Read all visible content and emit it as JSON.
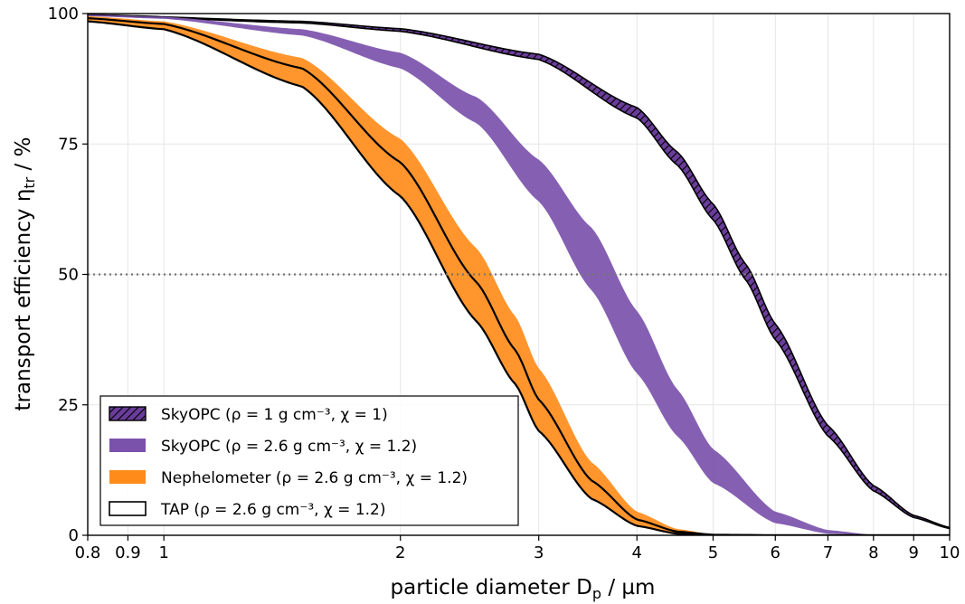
{
  "chart_data": {
    "type": "area",
    "title": "",
    "xlabel": "particle diameter D",
    "xlabel_sub": "p",
    "xlabel_unit": " / µm",
    "ylabel": "transport efficiency η",
    "ylabel_sub": "tr",
    "ylabel_unit": " / %",
    "xscale": "log",
    "xlim": [
      0.8,
      10
    ],
    "ylim": [
      0,
      100
    ],
    "xticks": [
      0.8,
      0.9,
      1,
      2,
      3,
      4,
      5,
      6,
      7,
      8,
      9,
      10
    ],
    "xtick_labels": [
      "0.8",
      "0.9",
      "1",
      "2",
      "3",
      "4",
      "5",
      "6",
      "7",
      "8",
      "9",
      "10"
    ],
    "yticks": [
      0,
      25,
      50,
      75,
      100
    ],
    "ytick_labels": [
      "0",
      "25",
      "50",
      "75",
      "100"
    ],
    "grid": true,
    "reference_line": {
      "y": 50,
      "style": "dotted"
    },
    "legend_position": "lower-left",
    "series": [
      {
        "name": "SkyOPC (ρ = 1 g cm⁻³, χ = 1)",
        "fill": "hatched",
        "color": "#6a3d9a",
        "x": [
          0.8,
          1.5,
          2,
          3,
          4,
          4.5,
          5,
          5.5,
          6,
          7,
          8,
          9,
          10
        ],
        "upper": [
          99.8,
          98.5,
          97.1,
          92.2,
          82.0,
          73.5,
          63.5,
          52.0,
          40.5,
          21.0,
          9.5,
          3.8,
          1.5
        ],
        "lower": [
          99.7,
          98.2,
          96.6,
          91.2,
          80.0,
          71.0,
          60.5,
          49.0,
          37.5,
          19.0,
          8.5,
          3.4,
          1.3
        ]
      },
      {
        "name": "SkyOPC (ρ = 2.6 g cm⁻³, χ = 1.2)",
        "fill": "solid",
        "color": "#7b52ab",
        "x": [
          0.8,
          1,
          1.5,
          2,
          2.5,
          3,
          3.5,
          4,
          4.5,
          5,
          6,
          7,
          8
        ],
        "upper": [
          99.8,
          99.4,
          97.0,
          92.5,
          84.0,
          72.0,
          59.0,
          43.0,
          28.0,
          16.5,
          4.5,
          1.0,
          0.1
        ],
        "lower": [
          99.5,
          99.0,
          95.8,
          89.5,
          79.0,
          64.0,
          47.0,
          31.0,
          19.0,
          10.0,
          2.3,
          0.3,
          0.0
        ]
      },
      {
        "name": "Nephelometer (ρ = 2.6 g cm⁻³, χ = 1.2)",
        "fill": "solid",
        "color": "#ff8c1a",
        "x": [
          0.8,
          1,
          1.5,
          2,
          2.5,
          2.8,
          3,
          3.5,
          4,
          4.5,
          5,
          6
        ],
        "upper": [
          99.5,
          98.5,
          91.5,
          76.0,
          55.0,
          42.0,
          32.0,
          14.0,
          4.5,
          1.2,
          0.2,
          0.0
        ],
        "lower": [
          98.5,
          97.0,
          86.0,
          65.0,
          41.0,
          29.0,
          20.0,
          7.0,
          1.8,
          0.3,
          0.05,
          0.0
        ]
      },
      {
        "name": "TAP (ρ = 2.6 g cm⁻³, χ = 1.2)",
        "fill": "white",
        "color": "#000000",
        "x": [
          0.8,
          1,
          1.5,
          2,
          2.5,
          2.8,
          3,
          3.5,
          4,
          4.5,
          5,
          6
        ],
        "upper": [
          99.1,
          98.0,
          89.5,
          71.5,
          48.5,
          35.5,
          26.0,
          10.5,
          3.0,
          0.7,
          0.1,
          0.0
        ],
        "lower": [
          98.5,
          97.0,
          86.0,
          65.0,
          41.0,
          29.0,
          20.0,
          7.0,
          1.8,
          0.3,
          0.05,
          0.0
        ]
      }
    ]
  }
}
